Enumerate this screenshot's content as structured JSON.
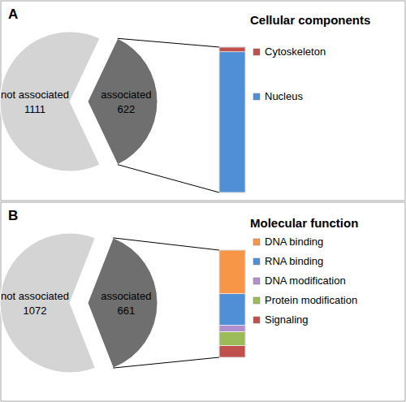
{
  "chart_data": [
    {
      "type": "pie",
      "annotations": [
        "A"
      ],
      "categories": [
        "not associated",
        "associated"
      ],
      "values": [
        1111,
        622
      ],
      "colors": [
        "#d4d4d4",
        "#6f6f6f"
      ],
      "data_labels": true
    },
    {
      "type": "bar",
      "title": "Cellular components",
      "stacked": true,
      "legend": "right",
      "tick_labels": false,
      "categories": [
        null
      ],
      "ylim": [
        0,
        622
      ],
      "series": [
        {
          "name": "Cytoskeleton",
          "color": "#c0504d",
          "values": [
            20
          ]
        },
        {
          "name": "Nucleus",
          "color": "#4f8fd5",
          "values": [
            602
          ]
        }
      ]
    },
    {
      "type": "pie",
      "annotations": [
        "B"
      ],
      "categories": [
        "not associated",
        "associated"
      ],
      "values": [
        1072,
        661
      ],
      "colors": [
        "#d4d4d4",
        "#6f6f6f"
      ],
      "data_labels": true
    },
    {
      "type": "bar",
      "title": "Molecular function",
      "stacked": true,
      "legend": "right",
      "tick_labels": false,
      "categories": [
        null
      ],
      "ylim": [
        0,
        661
      ],
      "series": [
        {
          "name": "DNA binding",
          "color": "#f79646",
          "values": [
            269
          ]
        },
        {
          "name": "RNA binding",
          "color": "#4f8fd5",
          "values": [
            193
          ]
        },
        {
          "name": "DNA modification",
          "color": "#b18fcf",
          "values": [
            41
          ]
        },
        {
          "name": "Protein modification",
          "color": "#9bbb59",
          "values": [
            86
          ]
        },
        {
          "name": "Signaling",
          "color": "#c0504d",
          "values": [
            72
          ]
        }
      ]
    }
  ]
}
